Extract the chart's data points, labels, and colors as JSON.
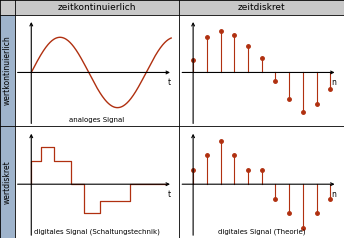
{
  "title_col1": "zeitkontinuierlich",
  "title_col2": "zeitdiskret",
  "label_row1": "wertkontinuierlich",
  "label_row2": "wertdiskret",
  "caption_tl": "analoges Signal",
  "caption_bl": "digitales Signal (Schaltungstechnik)",
  "caption_br": "digitales Signal (Theorie)",
  "header_bg": "#c8c8c8",
  "row_label_bg": "#9fb4cc",
  "signal_color": "#b03010",
  "font_size_header": 6.5,
  "font_size_label": 5.5,
  "font_size_caption": 5.0,
  "stem_vals_tr": [
    0.3,
    0.85,
    1.0,
    0.9,
    0.65,
    0.35,
    -0.2,
    -0.65,
    -0.95,
    -0.75,
    -0.4
  ],
  "stem_vals_br": [
    0.35,
    0.7,
    1.05,
    0.7,
    0.35,
    0.35,
    -0.35,
    -0.7,
    -1.05,
    -0.7,
    -0.35
  ]
}
